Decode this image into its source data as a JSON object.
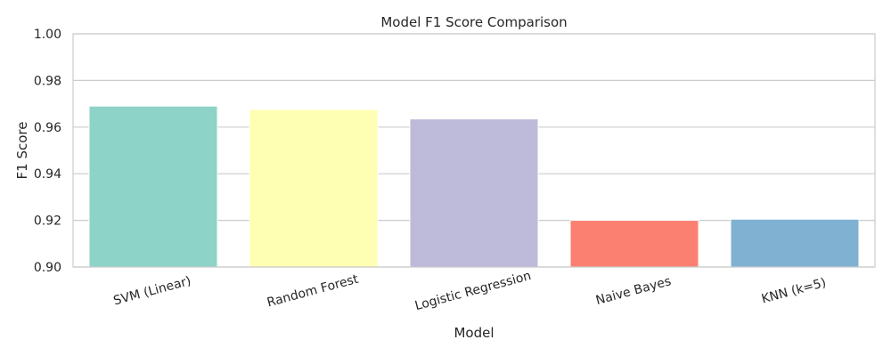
{
  "chart_data": {
    "type": "bar",
    "title": "Model F1 Score Comparison",
    "xlabel": "Model",
    "ylabel": "F1 Score",
    "categories": [
      "SVM (Linear)",
      "Random Forest",
      "Logistic Regression",
      "Naive Bayes",
      "KNN (k=5)"
    ],
    "values": [
      0.969,
      0.9675,
      0.9635,
      0.92,
      0.9205
    ],
    "colors": [
      "#8dd3c7",
      "#ffffb3",
      "#bebada",
      "#fb8072",
      "#80b1d3"
    ],
    "ylim": [
      0.9,
      1.0
    ],
    "yticks": [
      "0.90",
      "0.92",
      "0.94",
      "0.96",
      "0.98",
      "1.00"
    ],
    "grid": "horizontal",
    "xtick_rotation": "slanted"
  }
}
